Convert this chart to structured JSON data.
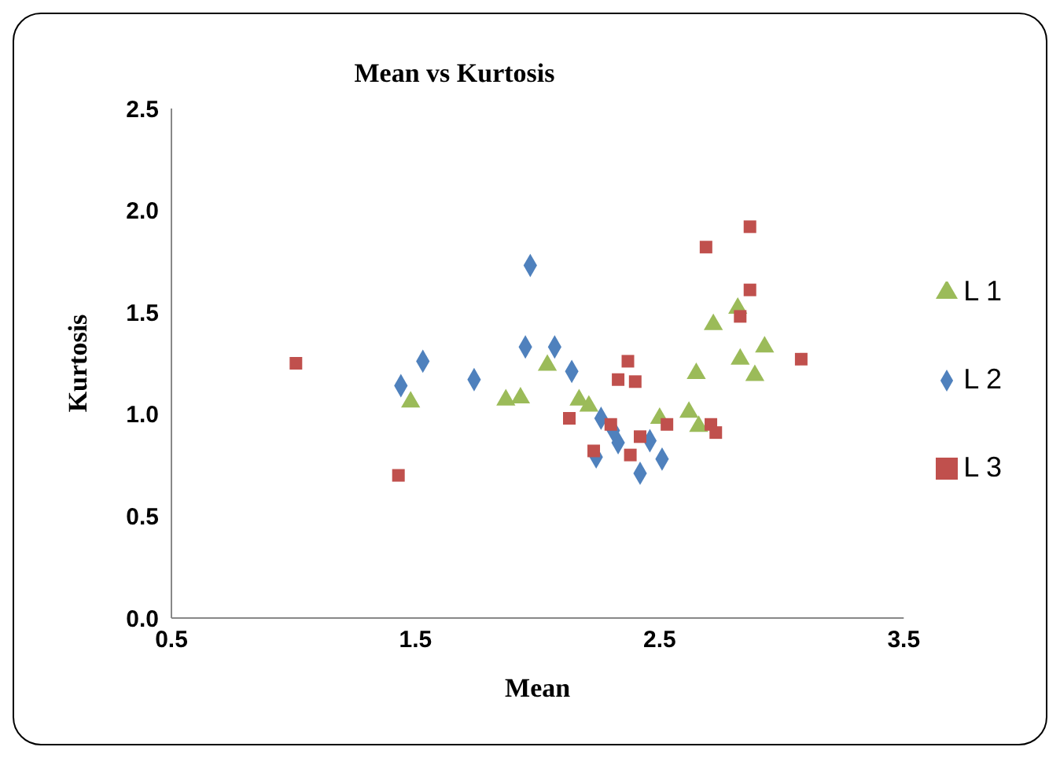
{
  "chart_data": {
    "type": "scatter",
    "title": "Mean vs Kurtosis",
    "xlabel": "Mean",
    "ylabel": "Kurtosis",
    "xlim": [
      0.5,
      3.5
    ],
    "xticks": [
      0.5,
      1.5,
      2.5,
      3.5
    ],
    "ylim": [
      0,
      2.5
    ],
    "yticks": [
      {
        "value": 0,
        "label": "0.0"
      },
      {
        "value": 0.5,
        "label": "0.5"
      },
      {
        "value": 1,
        "label": "1.0"
      },
      {
        "value": 1.5,
        "label": "1.5"
      },
      {
        "value": 2,
        "label": "2.0"
      },
      {
        "value": 2.5,
        "label": "2.5"
      }
    ],
    "grid": false,
    "legend": "right",
    "series": [
      {
        "name": "L 1",
        "color": "#9bbb59",
        "marker": "triangle",
        "x": [
          1.48,
          1.87,
          1.93,
          2.04,
          2.17,
          2.21,
          2.5,
          2.62,
          2.66,
          2.65,
          2.72,
          2.83,
          2.93,
          2.89,
          2.82
        ],
        "values": [
          1.06,
          1.07,
          1.08,
          1.24,
          1.07,
          1.04,
          0.98,
          1.01,
          0.94,
          1.2,
          1.44,
          1.27,
          1.33,
          1.19,
          1.52
        ]
      },
      {
        "name": "L 2",
        "color": "#4f81bd",
        "marker": "diamond",
        "x": [
          1.44,
          1.53,
          1.74,
          1.97,
          1.95,
          2.07,
          2.14,
          2.26,
          2.24,
          2.33,
          2.42,
          2.51,
          2.46,
          2.31
        ],
        "values": [
          1.14,
          1.26,
          1.17,
          1.73,
          1.33,
          1.33,
          1.21,
          0.98,
          0.79,
          0.86,
          0.71,
          0.78,
          0.87,
          0.92
        ]
      },
      {
        "name": "L 3",
        "color": "#c0504d",
        "marker": "square",
        "x": [
          1.01,
          1.43,
          2.13,
          2.23,
          2.3,
          2.37,
          2.33,
          2.4,
          2.38,
          2.42,
          2.53,
          2.71,
          2.73,
          2.69,
          2.87,
          2.87,
          2.83,
          3.08
        ],
        "values": [
          1.25,
          0.7,
          0.98,
          0.82,
          0.95,
          1.26,
          1.17,
          1.16,
          0.8,
          0.89,
          0.95,
          0.95,
          0.91,
          1.82,
          1.92,
          1.61,
          1.48,
          1.27
        ]
      }
    ]
  }
}
